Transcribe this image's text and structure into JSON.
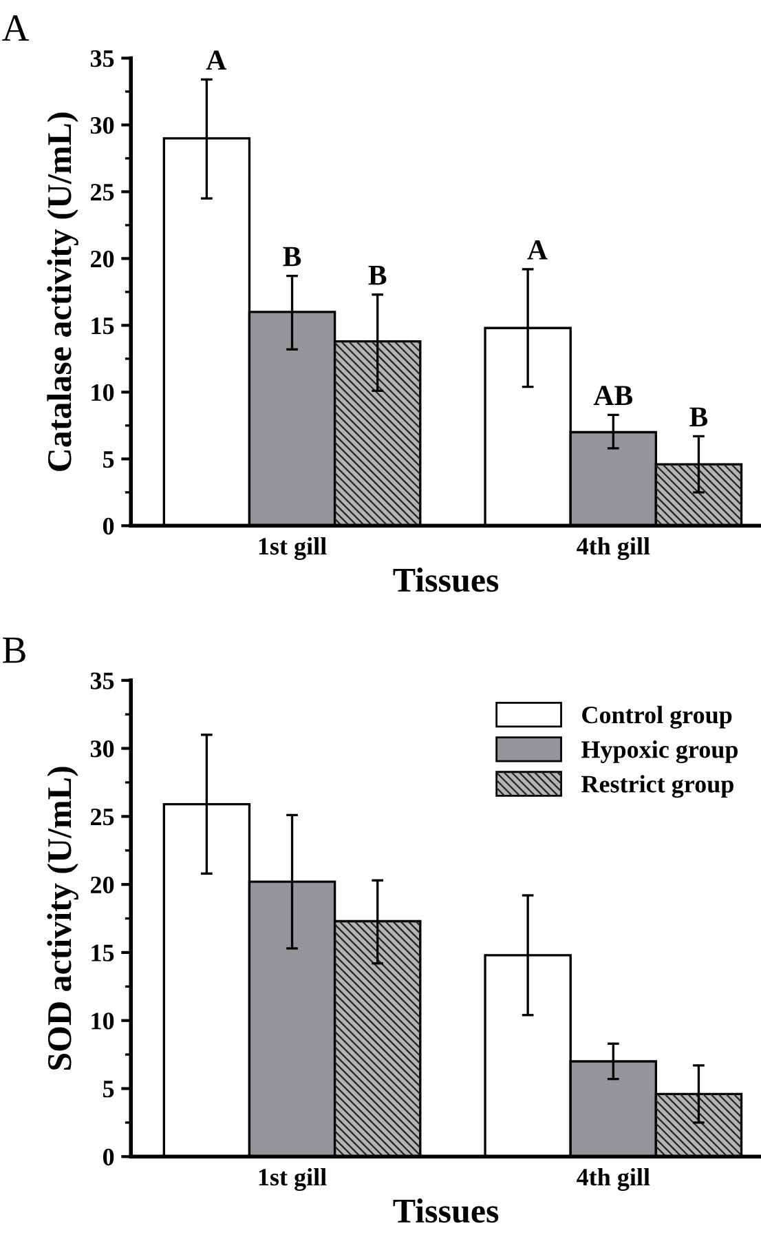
{
  "chart_data": [
    {
      "type": "bar",
      "title": "A",
      "xlabel": "Tissues",
      "ylabel": "Catalase activity (U/mL)",
      "categories": [
        "1st gill",
        "4th gill"
      ],
      "ylim": [
        0,
        35
      ],
      "yticks": [
        0,
        5,
        10,
        15,
        20,
        25,
        30,
        35
      ],
      "grid": false,
      "legend": false,
      "series": [
        {
          "color": "#ffffff",
          "values": [
            29.0,
            14.8
          ],
          "errors": [
            [
              24.5,
              33.4
            ],
            [
              10.4,
              19.2
            ]
          ],
          "value_labels": [
            "A",
            "A"
          ]
        },
        {
          "color": "#939598",
          "values": [
            16.0,
            7.0
          ],
          "errors": [
            [
              13.2,
              18.7
            ],
            [
              5.8,
              8.3
            ]
          ],
          "value_labels": [
            "B",
            "AB"
          ]
        },
        {
          "color": "#b4b4b4",
          "values": [
            13.8,
            4.6
          ],
          "errors": [
            [
              10.1,
              17.3
            ],
            [
              2.5,
              6.7
            ]
          ],
          "value_labels": [
            "B",
            "B"
          ]
        }
      ]
    },
    {
      "type": "bar",
      "title": "B",
      "xlabel": "Tissues",
      "ylabel": "SOD activity (U/mL)",
      "categories": [
        "1st gill",
        "4th gill"
      ],
      "ylim": [
        0,
        35
      ],
      "yticks": [
        0,
        5,
        10,
        15,
        20,
        25,
        30,
        35
      ],
      "grid": false,
      "legend": "top right",
      "series": [
        {
          "name": "Control group",
          "color": "#ffffff",
          "values": [
            25.9,
            14.8
          ],
          "errors": [
            [
              20.8,
              31.0
            ],
            [
              10.4,
              19.2
            ]
          ]
        },
        {
          "name": "Hypoxic group",
          "color": "#939598",
          "values": [
            20.2,
            7.0
          ],
          "errors": [
            [
              15.3,
              25.1
            ],
            [
              5.7,
              8.3
            ]
          ]
        },
        {
          "name": "Restrict group",
          "color": "#b4b4b4",
          "values": [
            17.3,
            4.6
          ],
          "errors": [
            [
              14.2,
              20.3
            ],
            [
              2.5,
              6.7
            ]
          ]
        }
      ]
    }
  ]
}
